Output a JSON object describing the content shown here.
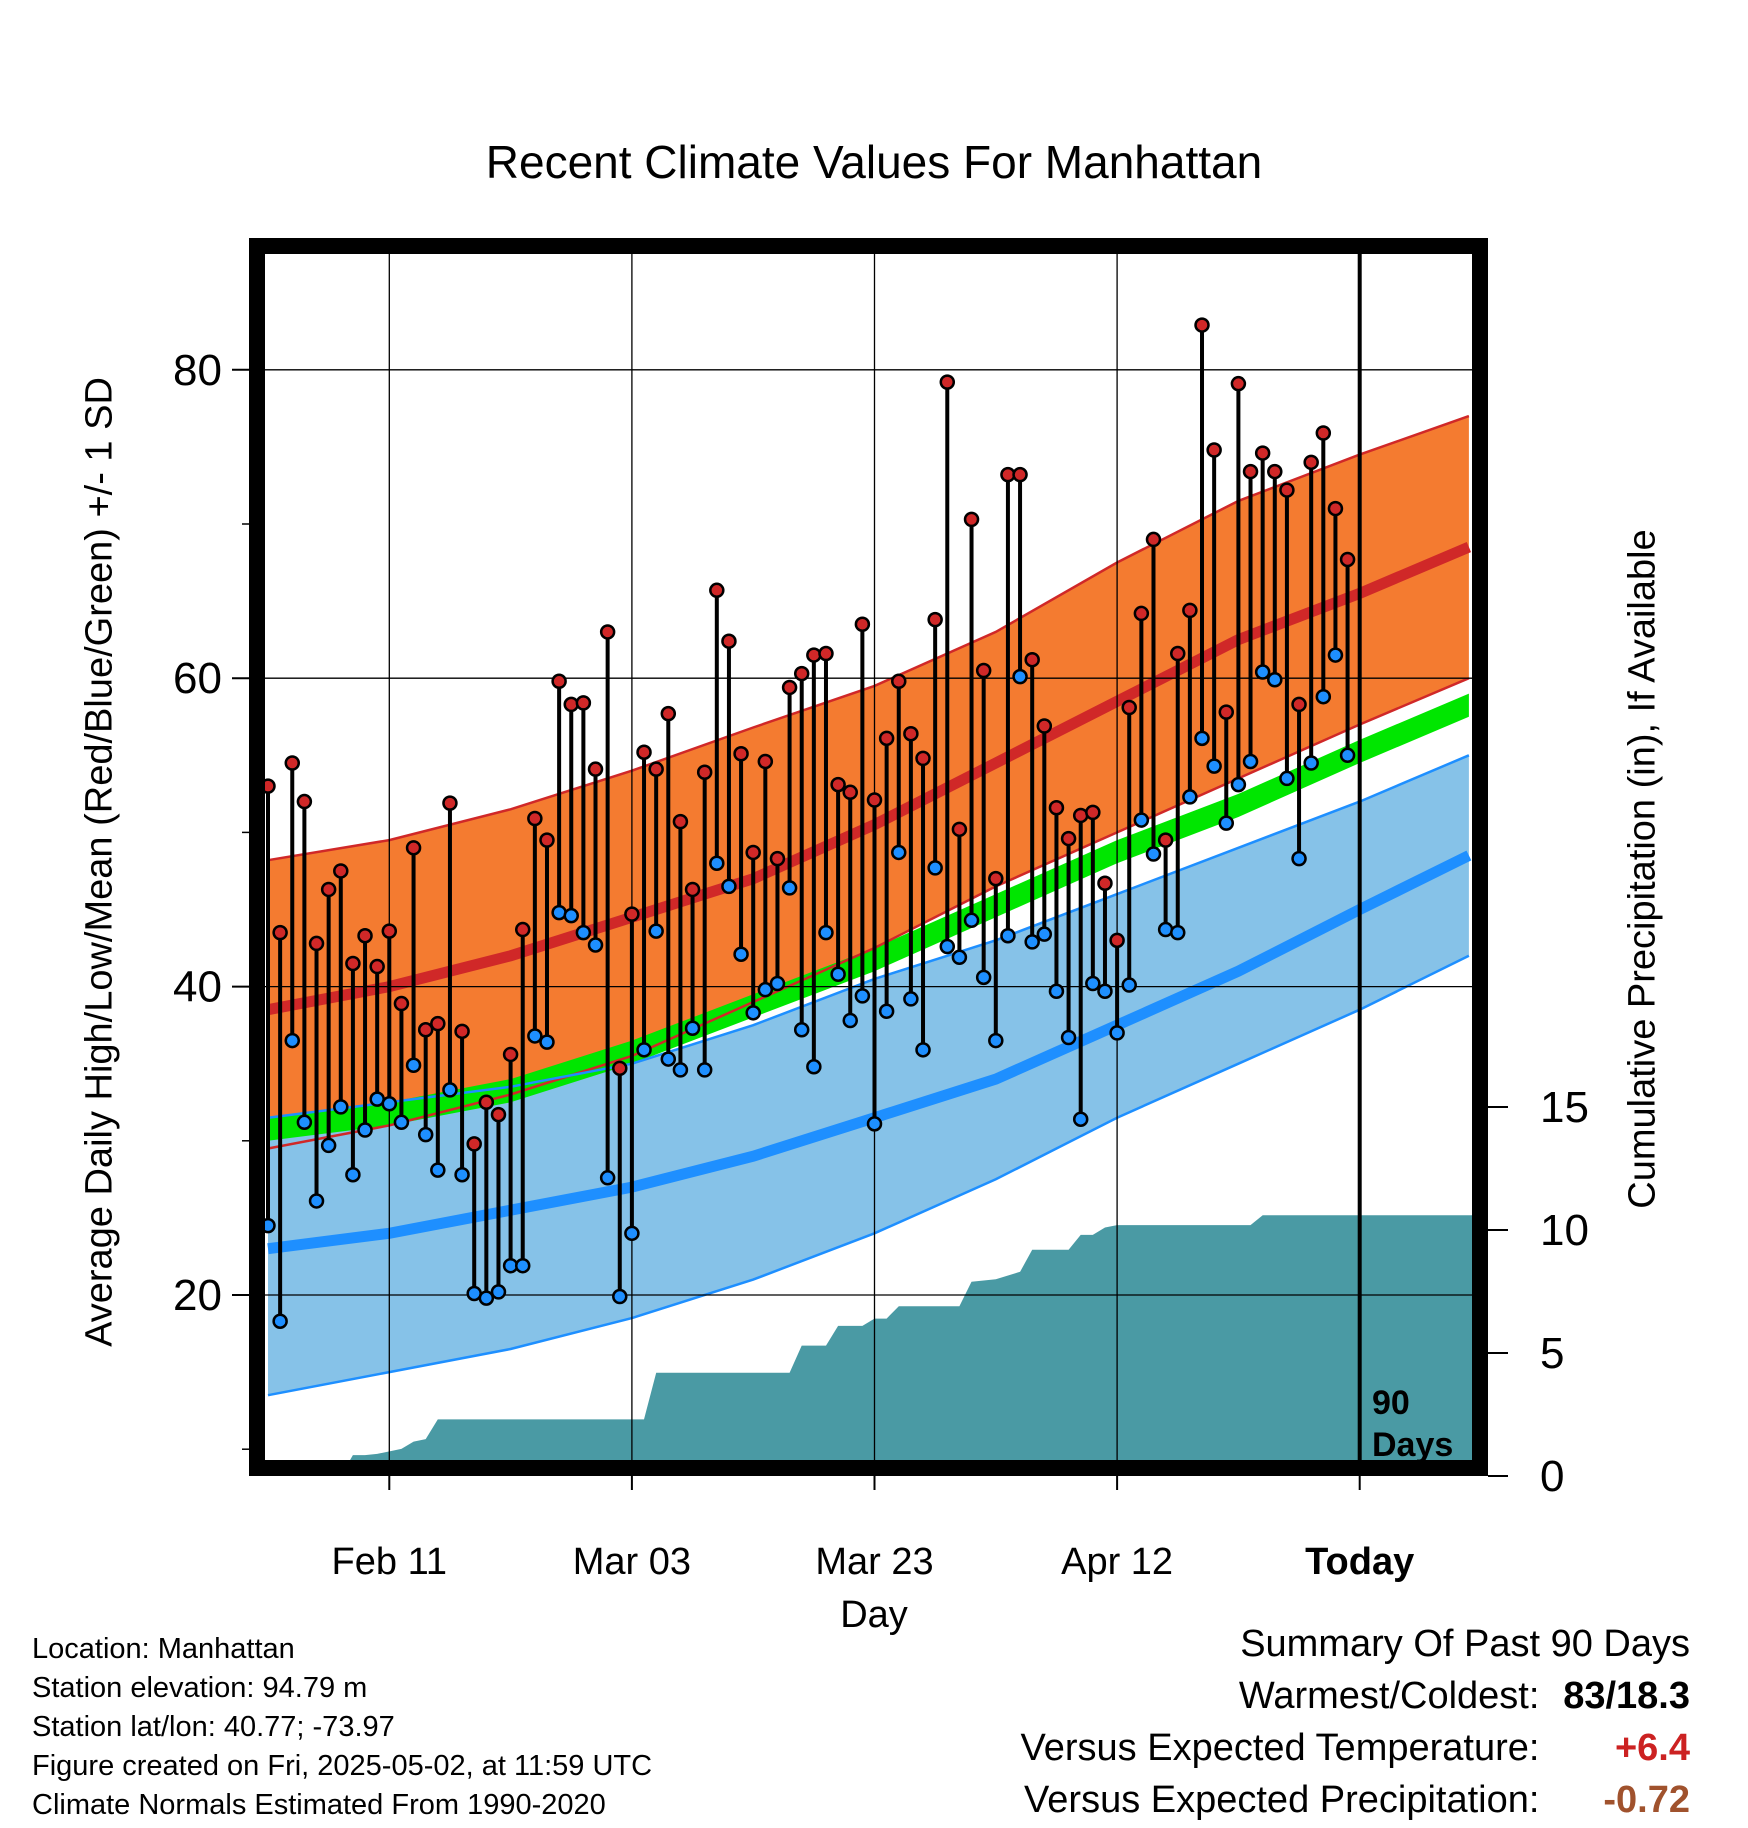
{
  "title": "Recent Climate Values For Manhattan",
  "ylabel": "Average Daily High/Low/Mean (Red/Blue/Green) +/- 1 SD",
  "y2label": "Cumulative Precipitation (in), If Available",
  "xlabel": "Day",
  "today_note": [
    "90",
    "Days"
  ],
  "info": [
    "Location: Manhattan",
    "Station elevation: 94.79 m",
    "Station lat/lon: 40.77; -73.97",
    "Figure created on Fri, 2025-05-02, at 11:59 UTC",
    "Climate Normals Estimated From 1990-2020"
  ],
  "summary": {
    "heading": "Summary Of Past 90 Days",
    "warmest_coldest_label": "Warmest/Coldest:",
    "warmest_coldest_value": "83/18.3",
    "temp_label": "Versus Expected Temperature:",
    "temp_value": "+6.4",
    "precip_label": "Versus Expected Precipitation:",
    "precip_value": "-0.72"
  },
  "colors": {
    "high_band": "#f47b30",
    "high_mean": "#d02828",
    "low_band": "#86c2e8",
    "low_mean": "#1e8fff",
    "mean_band": "#00e600",
    "precip_fill": "#4a9aa4",
    "warm": "#cc2222",
    "dry": "#a0522d"
  },
  "chart_data": {
    "type": "line",
    "x_ticks": [
      {
        "day": 10,
        "label": "Feb 11"
      },
      {
        "day": 30,
        "label": "Mar 03"
      },
      {
        "day": 50,
        "label": "Mar 23"
      },
      {
        "day": 70,
        "label": "Apr 12"
      },
      {
        "day": 90,
        "label": "Today"
      }
    ],
    "xlim": [
      0,
      99
    ],
    "y_ticks": [
      20,
      40,
      60,
      80
    ],
    "ylim": [
      9,
      88
    ],
    "y2_ticks": [
      0,
      5,
      10,
      15
    ],
    "normals": {
      "days": [
        0,
        10,
        20,
        30,
        40,
        50,
        60,
        70,
        80,
        90,
        99
      ],
      "high_plus_sd": [
        48.2,
        49.5,
        51.5,
        54.0,
        56.8,
        59.5,
        63.0,
        67.5,
        71.5,
        74.5,
        77.0
      ],
      "high_mean": [
        38.5,
        40.0,
        42.0,
        44.5,
        47.0,
        50.5,
        54.5,
        58.5,
        62.5,
        65.5,
        68.5
      ],
      "high_minus_sd": [
        29.5,
        31.0,
        33.0,
        35.5,
        39.0,
        42.5,
        46.5,
        50.0,
        53.5,
        57.0,
        60.0
      ],
      "mean_upper": [
        31.5,
        32.5,
        34.0,
        36.5,
        39.5,
        42.5,
        46.0,
        49.5,
        52.5,
        56.0,
        59.0
      ],
      "mean_lower": [
        30.0,
        31.0,
        32.5,
        35.0,
        38.0,
        41.0,
        44.5,
        48.0,
        51.0,
        54.5,
        57.5
      ],
      "low_plus_sd": [
        31.5,
        32.5,
        33.5,
        35.0,
        37.5,
        40.5,
        43.0,
        46.0,
        49.0,
        52.0,
        55.0
      ],
      "low_mean": [
        23.0,
        24.0,
        25.5,
        27.0,
        29.0,
        31.5,
        34.0,
        37.5,
        41.0,
        45.0,
        48.5
      ],
      "low_minus_sd": [
        13.5,
        15.0,
        16.5,
        18.5,
        21.0,
        24.0,
        27.5,
        31.5,
        35.0,
        38.5,
        42.0
      ]
    },
    "series": [
      {
        "name": "High",
        "values": [
          53,
          43.5,
          54.5,
          52,
          42.8,
          46.3,
          47.5,
          41.5,
          43.3,
          41.3,
          43.6,
          38.9,
          49,
          37.2,
          37.6,
          51.9,
          37.1,
          29.8,
          32.5,
          31.7,
          35.6,
          43.7,
          50.9,
          49.5,
          59.8,
          58.3,
          58.4,
          54.1,
          63,
          34.7,
          44.7,
          55.2,
          54.1,
          57.7,
          50.7,
          46.3,
          53.9,
          65.7,
          62.4,
          55.1,
          48.7,
          54.6,
          48.3,
          59.4,
          60.3,
          61.5,
          61.6,
          53.1,
          52.6,
          63.5,
          52.1,
          56.1,
          59.8,
          56.4,
          54.8,
          63.8,
          79.2,
          50.2,
          70.3,
          60.5,
          47,
          73.2,
          73.2,
          61.2,
          56.9,
          51.6,
          49.6,
          51.1,
          51.3,
          46.7,
          43,
          58.1,
          64.2,
          69,
          49.5,
          61.6,
          64.4,
          82.9,
          74.8,
          57.8,
          79.1,
          73.4,
          74.6,
          73.4,
          72.2,
          58.3,
          74,
          75.9,
          71,
          67.7
        ]
      },
      {
        "name": "Low",
        "values": [
          24.5,
          18.3,
          36.5,
          31.2,
          26.1,
          29.7,
          32.2,
          27.8,
          30.7,
          32.7,
          32.4,
          31.2,
          34.9,
          30.4,
          28.1,
          33.3,
          27.8,
          20.1,
          19.8,
          20.2,
          21.9,
          21.9,
          36.8,
          36.4,
          44.8,
          44.6,
          43.5,
          42.7,
          27.6,
          19.9,
          24.0,
          35.9,
          43.6,
          35.3,
          34.6,
          37.3,
          34.6,
          48,
          46.5,
          42.1,
          38.3,
          39.8,
          40.2,
          46.4,
          37.2,
          34.8,
          43.5,
          40.8,
          37.8,
          39.4,
          31.1,
          38.4,
          48.7,
          39.2,
          35.9,
          47.7,
          42.6,
          41.9,
          44.3,
          40.6,
          36.5,
          43.3,
          60.1,
          42.9,
          43.4,
          39.7,
          36.7,
          31.4,
          40.2,
          39.7,
          37,
          40.1,
          50.8,
          48.6,
          43.7,
          43.5,
          52.3,
          56.1,
          54.3,
          50.6,
          53.1,
          54.6,
          60.4,
          59.9,
          53.5,
          48.3,
          54.5,
          58.8,
          61.5,
          55
        ]
      },
      {
        "name": "Cumulative Precipitation",
        "steps": [
          [
            0,
            0
          ],
          [
            6,
            0
          ],
          [
            7,
            0.85
          ],
          [
            8,
            0.85
          ],
          [
            9,
            0.9
          ],
          [
            11,
            1.1
          ],
          [
            12,
            1.4
          ],
          [
            13,
            1.5
          ],
          [
            14,
            2.3
          ],
          [
            15,
            2.3
          ],
          [
            31,
            2.3
          ],
          [
            32,
            4.2
          ],
          [
            43,
            4.2
          ],
          [
            44,
            5.3
          ],
          [
            46,
            5.3
          ],
          [
            47,
            6.1
          ],
          [
            49,
            6.1
          ],
          [
            50,
            6.4
          ],
          [
            51,
            6.4
          ],
          [
            52,
            6.9
          ],
          [
            57,
            6.9
          ],
          [
            58,
            7.9
          ],
          [
            60,
            8.0
          ],
          [
            62,
            8.3
          ],
          [
            63,
            9.2
          ],
          [
            66,
            9.2
          ],
          [
            67,
            9.8
          ],
          [
            68,
            9.8
          ],
          [
            69,
            10.1
          ],
          [
            70,
            10.2
          ],
          [
            81,
            10.2
          ],
          [
            82,
            10.6
          ],
          [
            99,
            10.6
          ]
        ]
      }
    ]
  }
}
